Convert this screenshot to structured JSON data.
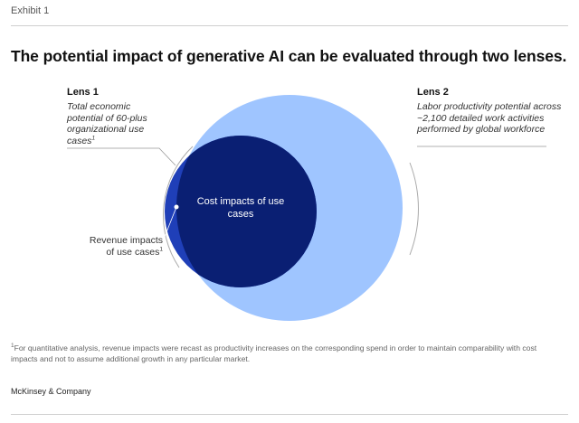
{
  "exhibit_label": "Exhibit 1",
  "title": "The potential impact of generative AI can be evaluated through two lenses.",
  "lens1": {
    "title": "Lens 1",
    "description": "Total economic potential of 60-plus organizational use cases",
    "footnote_marker": "1"
  },
  "lens2": {
    "title": "Lens 2",
    "description": "Labor productivity potential across ~2,100 detailed work activities performed by global workforce"
  },
  "center_label": "Cost impacts of use cases",
  "revenue_label": {
    "text": "Revenue impacts of use cases",
    "footnote_marker": "1"
  },
  "footnote": {
    "marker": "1",
    "text": "For quantitative analysis, revenue impacts were recast as productivity increases on the corresponding spend in order to maintain comparability with cost impacts and not to assume additional growth in any particular market."
  },
  "source": "McKinsey & Company",
  "colors": {
    "large_circle": "#9fc5ff",
    "small_circle": "#1f3fb8",
    "overlap": "#0a1f73",
    "leader_line": "#999999",
    "bracket": "#aaaaaa"
  }
}
